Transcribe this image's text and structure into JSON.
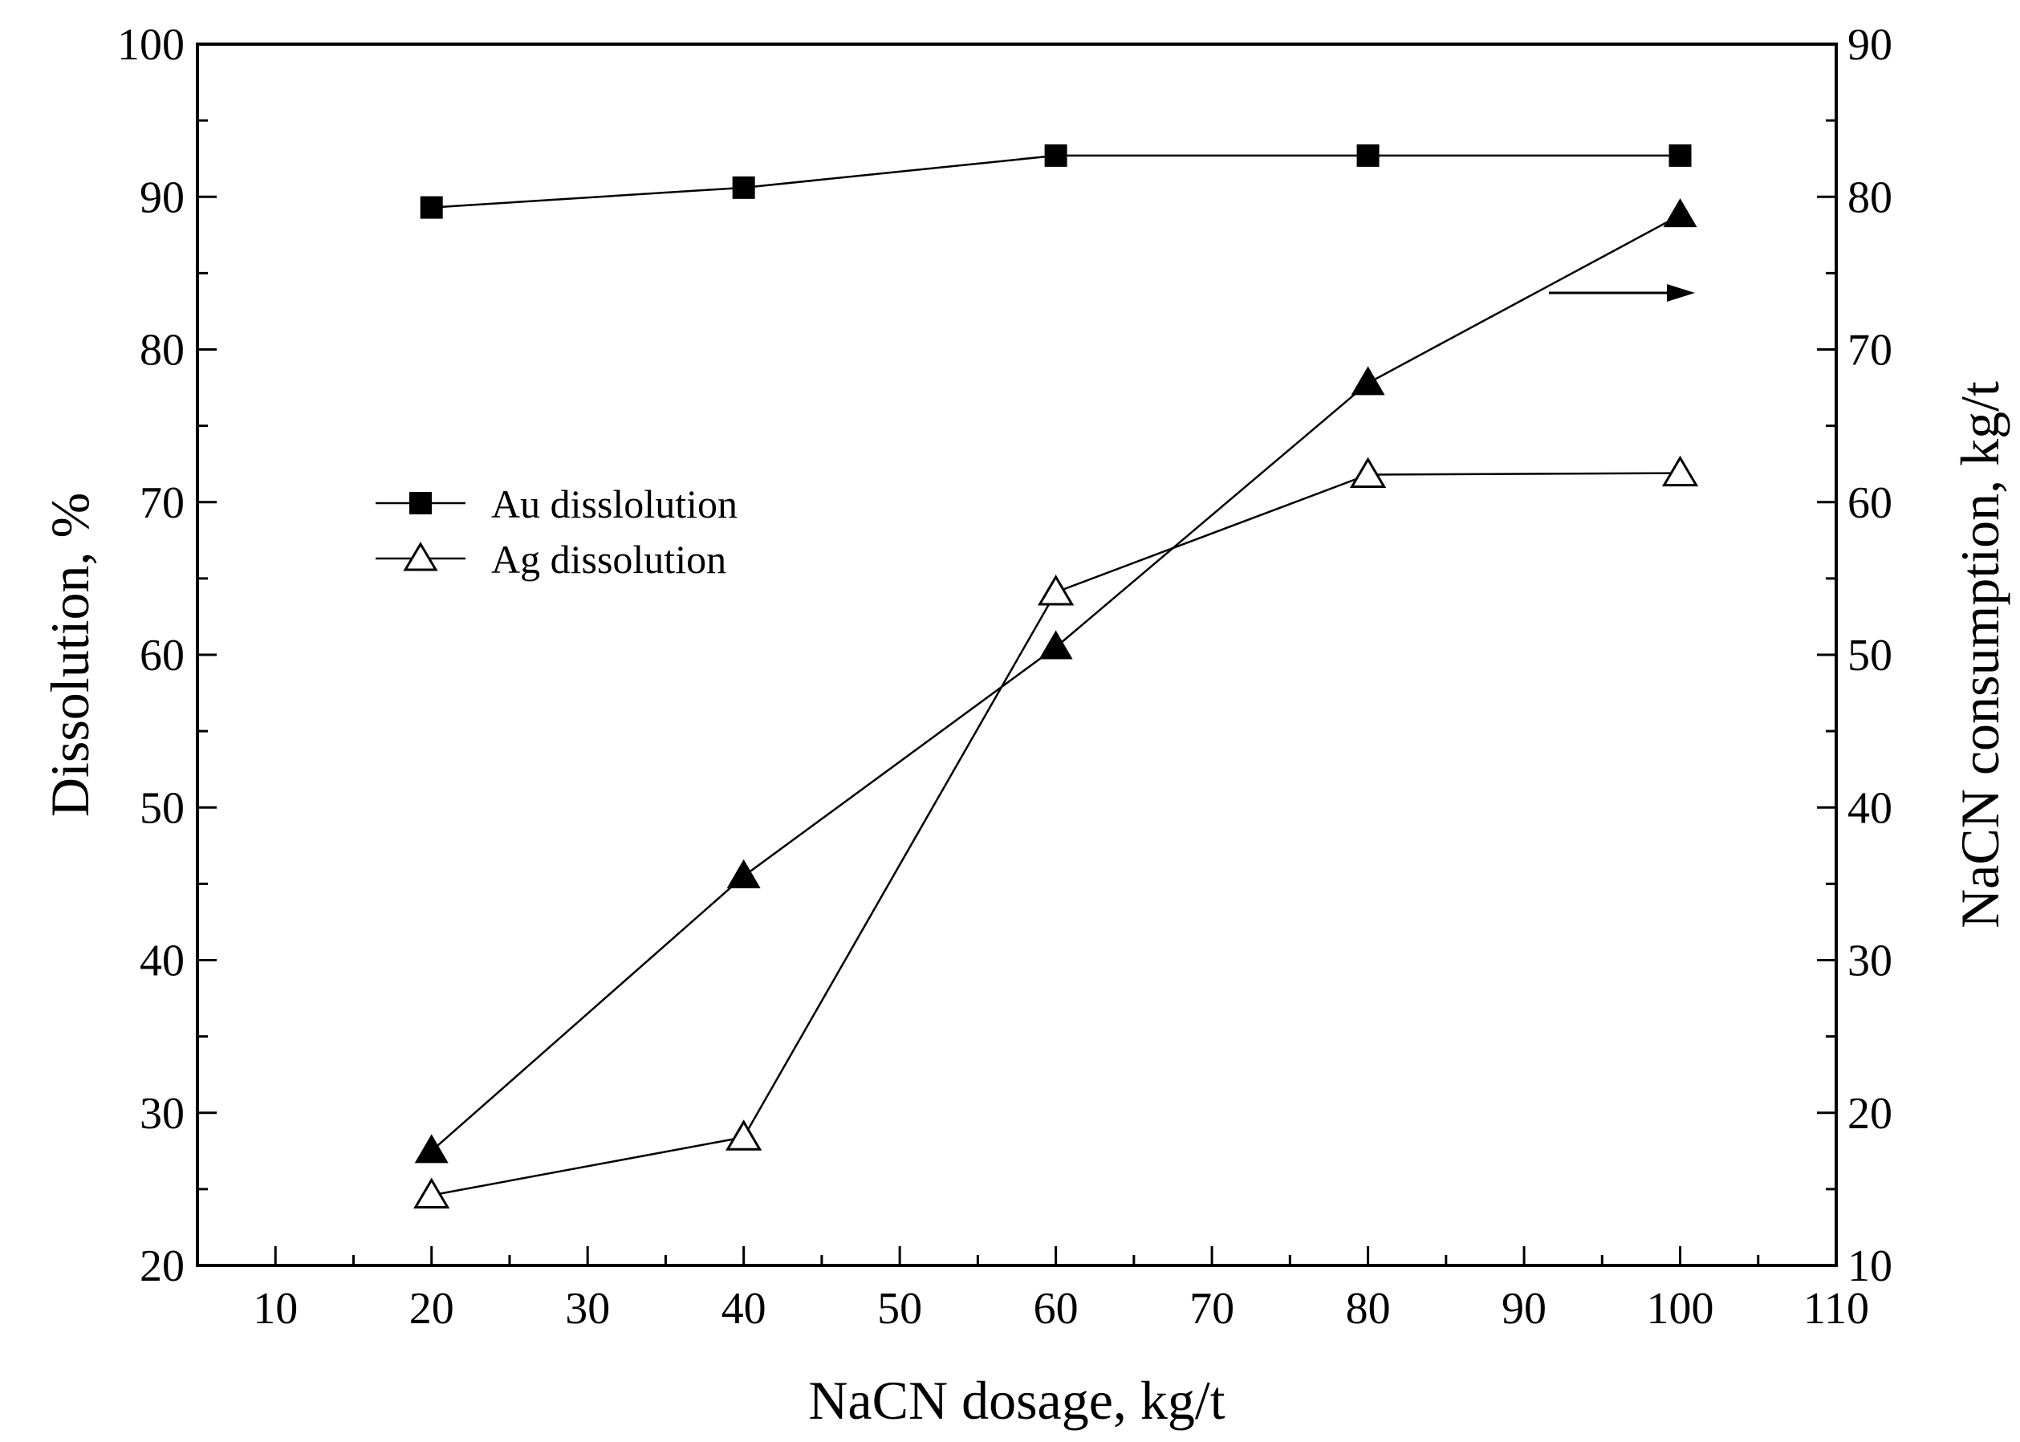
{
  "chart_data": {
    "type": "line",
    "title": "",
    "xlabel": "NaCN dosage, kg/t",
    "ylabel": "Dissolution, %",
    "y2label": "NaCN consumption, kg/t",
    "xlim": [
      5,
      110
    ],
    "ylim": [
      20,
      100
    ],
    "y2lim": [
      10,
      90
    ],
    "xticks": [
      10,
      20,
      30,
      40,
      50,
      60,
      70,
      80,
      90,
      100,
      110
    ],
    "yticks": [
      20,
      30,
      40,
      50,
      60,
      70,
      80,
      90,
      100
    ],
    "y2ticks": [
      10,
      20,
      30,
      40,
      50,
      60,
      70,
      80,
      90
    ],
    "x": [
      20,
      40,
      60,
      80,
      100
    ],
    "series": [
      {
        "name": "Au disslolution",
        "axis": "left",
        "marker": "filled-square",
        "values": [
          89.3,
          90.6,
          92.7,
          92.7,
          92.7
        ]
      },
      {
        "name": "Ag dissolution",
        "axis": "left",
        "marker": "open-triangle",
        "values": [
          24.6,
          28.4,
          64.1,
          71.8,
          71.9
        ]
      },
      {
        "name": "NaCN consumption",
        "axis": "right",
        "marker": "filled-triangle",
        "values": [
          17.5,
          35.5,
          50.5,
          67.8,
          78.8
        ]
      }
    ],
    "legend": [
      "Au disslolution",
      "Ag dissolution"
    ],
    "legend_position": "middle-left",
    "annotation": "arrow pointing to right axis for NaCN consumption",
    "grid": false
  }
}
